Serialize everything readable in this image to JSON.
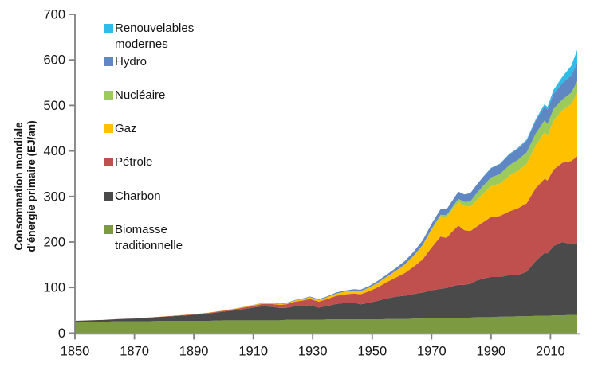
{
  "figure": {
    "background": "#ffffff"
  },
  "chart_data": {
    "type": "area",
    "stacked": true,
    "title": "",
    "xlabel": "",
    "ylabel": "Consommation mondiale d'énergie primaire (EJ/an)",
    "ylabel_lines": [
      "Consommation mondiale",
      "d'énergie primaire (EJ/an)"
    ],
    "unit": "EJ/an",
    "xlim": [
      1850,
      2019
    ],
    "ylim": [
      0,
      700
    ],
    "x_ticks": [
      1850,
      1870,
      1890,
      1910,
      1930,
      1950,
      1970,
      1990,
      2010
    ],
    "y_ticks": [
      0,
      100,
      200,
      300,
      400,
      500,
      600,
      700
    ],
    "grid": false,
    "legend_position": "inside-top-left",
    "axis_color": "#808080",
    "label_color": "#151515",
    "years": [
      1850,
      1855,
      1860,
      1865,
      1870,
      1875,
      1880,
      1885,
      1890,
      1895,
      1900,
      1905,
      1910,
      1913,
      1916,
      1919,
      1921,
      1924,
      1927,
      1929,
      1932,
      1935,
      1938,
      1941,
      1944,
      1946,
      1949,
      1952,
      1955,
      1958,
      1961,
      1964,
      1967,
      1970,
      1973,
      1975,
      1977,
      1979,
      1981,
      1983,
      1985,
      1987,
      1990,
      1993,
      1996,
      1999,
      2002,
      2005,
      2008,
      2009,
      2011,
      2014,
      2017,
      2019
    ],
    "series": [
      {
        "name": "biomasse_traditionnelle",
        "label": "Biomasse traditionnelle",
        "color": "#7B9A41",
        "values": [
          25,
          25,
          25,
          26,
          26,
          26,
          27,
          27,
          27,
          27,
          28,
          28,
          28,
          28,
          28,
          28,
          29,
          29,
          29,
          29,
          29,
          30,
          30,
          30,
          30,
          30,
          30,
          30,
          31,
          31,
          31,
          32,
          32,
          33,
          33,
          33,
          34,
          34,
          34,
          34,
          35,
          35,
          35,
          36,
          36,
          37,
          37,
          38,
          38,
          38,
          39,
          39,
          40,
          40
        ]
      },
      {
        "name": "charbon",
        "label": "Charbon",
        "color": "#4A4A4A",
        "values": [
          2,
          3,
          4,
          5,
          6,
          8,
          9,
          11,
          13,
          16,
          19,
          23,
          28,
          31,
          30,
          27,
          26,
          30,
          31,
          32,
          27,
          30,
          34,
          36,
          37,
          33,
          37,
          41,
          45,
          49,
          51,
          54,
          57,
          61,
          64,
          66,
          69,
          72,
          72,
          74,
          80,
          84,
          88,
          87,
          91,
          90,
          98,
          120,
          138,
          137,
          152,
          161,
          155,
          158
        ]
      },
      {
        "name": "petrole",
        "label": "Pétrole",
        "color": "#C0504D",
        "values": [
          0,
          0,
          0.1,
          0.1,
          0.2,
          0.4,
          0.6,
          0.9,
          1.2,
          1.6,
          2,
          3,
          4,
          5,
          6,
          7,
          8,
          10,
          12,
          14,
          13,
          15,
          18,
          19,
          20,
          22,
          25,
          30,
          36,
          42,
          50,
          60,
          73,
          94,
          115,
          110,
          120,
          130,
          120,
          116,
          118,
          123,
          132,
          134,
          140,
          147,
          150,
          160,
          163,
          160,
          168,
          174,
          183,
          190
        ]
      },
      {
        "name": "gaz",
        "label": "Gaz",
        "color": "#FFC000",
        "values": [
          0,
          0,
          0,
          0,
          0,
          0,
          0.1,
          0.2,
          0.4,
          0.5,
          0.7,
          1,
          1.4,
          1.7,
          1.9,
          2,
          2.1,
          2.5,
          3.2,
          3.8,
          3.5,
          4.2,
          5,
          6,
          6.5,
          7,
          8,
          10,
          12,
          15,
          19,
          24,
          31,
          39,
          45,
          45,
          48,
          52,
          53,
          54,
          58,
          62,
          68,
          71,
          78,
          82,
          87,
          94,
          102,
          99,
          108,
          115,
          125,
          139
        ]
      },
      {
        "name": "nucleaire",
        "label": "Nucléaire",
        "color": "#9CCB5B",
        "values": [
          0,
          0,
          0,
          0,
          0,
          0,
          0,
          0,
          0,
          0,
          0,
          0,
          0,
          0,
          0,
          0,
          0,
          0,
          0,
          0,
          0,
          0,
          0,
          0,
          0,
          0,
          0,
          0,
          0,
          0,
          0.1,
          0.3,
          0.8,
          2,
          3,
          4.5,
          6,
          7,
          9,
          11,
          15,
          17,
          19,
          21,
          23,
          24,
          25,
          26,
          26,
          25,
          25,
          24,
          25,
          26
        ]
      },
      {
        "name": "hydro",
        "label": "Hydro",
        "color": "#5E87C3",
        "values": [
          0,
          0,
          0,
          0,
          0,
          0,
          0,
          0,
          0,
          0,
          0.2,
          0.4,
          0.5,
          0.6,
          0.7,
          0.8,
          0.9,
          1.1,
          1.4,
          1.6,
          1.8,
          2,
          2.3,
          2.6,
          2.9,
          3.1,
          3.5,
          4.2,
          5,
          6,
          7.5,
          8.8,
          10,
          11,
          12,
          13,
          14,
          15.5,
          16.5,
          18,
          18.5,
          19.5,
          20.5,
          22.5,
          24,
          25,
          26,
          28,
          31,
          31.5,
          33,
          36,
          38,
          40
        ]
      },
      {
        "name": "renouvelables_modernes",
        "label": "Renouvelables modernes",
        "color": "#2FBCE8",
        "values": [
          0,
          0,
          0,
          0,
          0,
          0,
          0,
          0,
          0,
          0,
          0,
          0,
          0,
          0,
          0,
          0,
          0,
          0,
          0,
          0,
          0,
          0,
          0,
          0,
          0,
          0,
          0,
          0,
          0,
          0,
          0,
          0,
          0,
          0,
          0,
          0,
          0,
          0,
          0,
          0,
          0,
          0.3,
          0.5,
          0.7,
          1,
          1.4,
          2,
          3,
          5,
          6,
          9,
          14,
          21,
          29
        ]
      }
    ],
    "legend": [
      {
        "label": "Renouvelables modernes",
        "series": "renouvelables_modernes",
        "color": "#2FBCE8"
      },
      {
        "label": "Hydro",
        "series": "hydro",
        "color": "#5E87C3"
      },
      {
        "label": "Nucléaire",
        "series": "nucleaire",
        "color": "#9CCB5B"
      },
      {
        "label": "Gaz",
        "series": "gaz",
        "color": "#FFC000"
      },
      {
        "label": "Pétrole",
        "series": "petrole",
        "color": "#C0504D"
      },
      {
        "label": "Charbon",
        "series": "charbon",
        "color": "#4A4A4A"
      },
      {
        "label": "Biomasse traditionnelle",
        "series": "biomasse_traditionnelle",
        "color": "#7B9A41"
      }
    ]
  }
}
